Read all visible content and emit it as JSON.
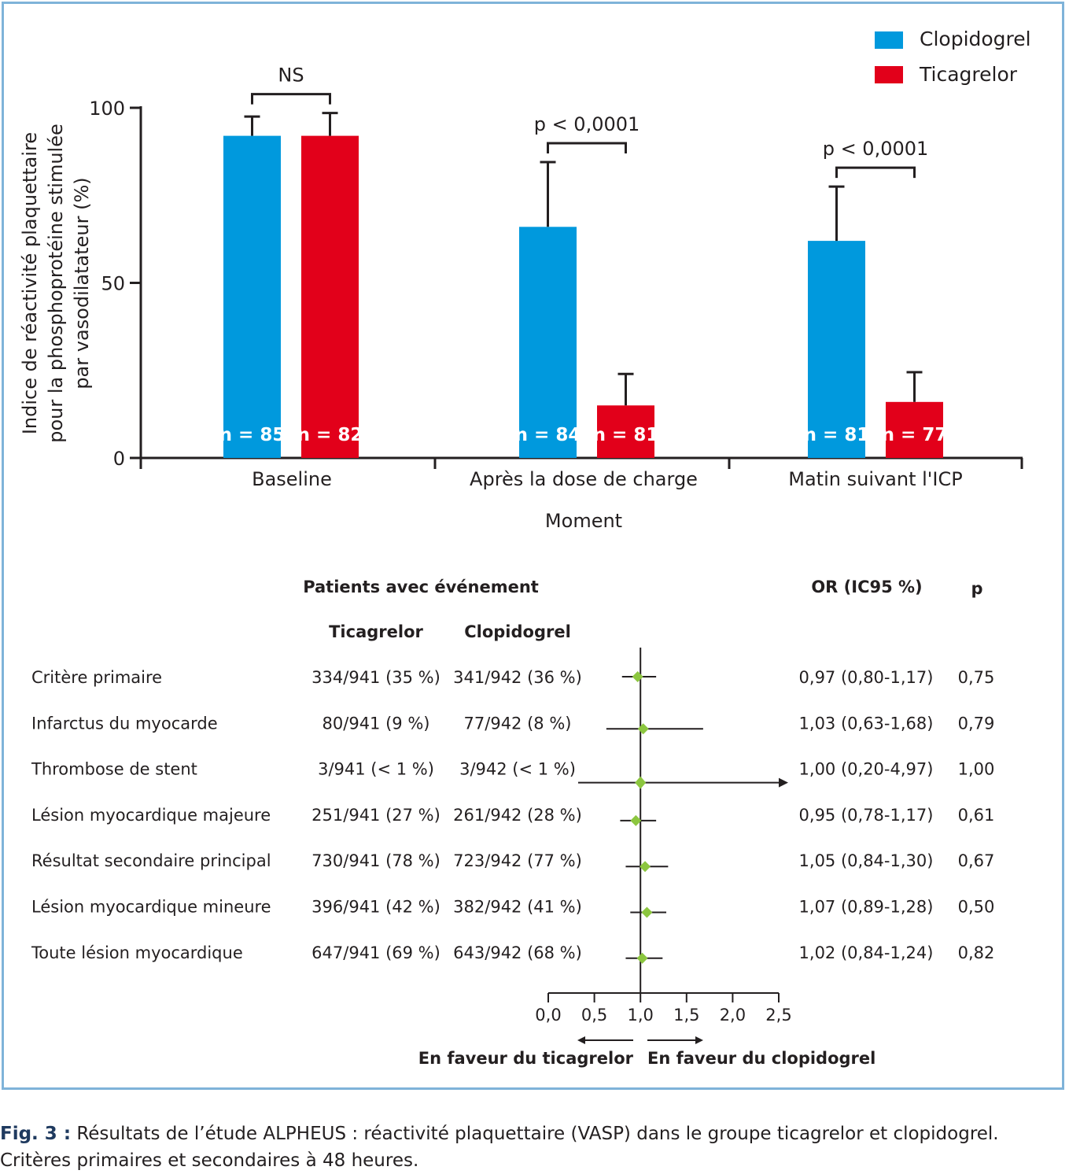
{
  "colors": {
    "clopidogrel": "#0099dd",
    "ticagrelor": "#e2001a",
    "diamond": "#8cc63f",
    "frame": "#7fb3d9"
  },
  "chart_data": [
    {
      "type": "bar",
      "ylabel": "Indice de réactivité plaquettaire pour la phosphoprotéine stimulée par vasodilatateur (%)",
      "ylabel_lines": [
        "Indice de réactivité plaquettaire",
        "pour la phosphoprotéine stimulée",
        "par vasodilatateur (%)"
      ],
      "xlabel": "Moment",
      "ylim": [
        0,
        100
      ],
      "yticks": [
        0,
        50,
        100
      ],
      "categories": [
        "Baseline",
        "Après la dose de charge",
        "Matin suivant l'ICP"
      ],
      "legend": [
        "Clopidogrel",
        "Ticagrelor"
      ],
      "legend_position": "top-right",
      "series": [
        {
          "name": "Clopidogrel",
          "values": [
            92,
            66,
            62
          ],
          "error": [
            5.5,
            18.5,
            15.5
          ],
          "n_labels": [
            "n = 85",
            "n = 84",
            "n = 81"
          ]
        },
        {
          "name": "Ticagrelor",
          "values": [
            92,
            15,
            16
          ],
          "error": [
            6.5,
            9,
            8.5
          ],
          "n_labels": [
            "n = 82",
            "n = 81",
            "n = 77"
          ]
        }
      ],
      "significance": [
        "NS",
        "p < 0,0001",
        "p < 0,0001"
      ]
    },
    {
      "type": "forest",
      "header_events": "Patients avec événement",
      "header_ticagrelor": "Ticagrelor",
      "header_clopidogrel": "Clopidogrel",
      "header_or": "OR (IC95 %)",
      "header_p": "p",
      "rows": [
        {
          "label": "Critère primaire",
          "ticagrelor": "334/941 (35 %)",
          "clopidogrel": "341/942 (36 %)",
          "or_text": "0,97 (0,80-1,17)",
          "p": "0,75",
          "or": 0.97,
          "lo": 0.8,
          "hi": 1.17,
          "arrow": false
        },
        {
          "label": "Infarctus du myocarde",
          "ticagrelor": "80/941 (9 %)",
          "clopidogrel": "77/942 (8 %)",
          "or_text": "1,03 (0,63-1,68)",
          "p": "0,79",
          "or": 1.03,
          "lo": 0.63,
          "hi": 1.68,
          "arrow": false
        },
        {
          "label": "Thrombose de stent",
          "ticagrelor": "3/941 (< 1 %)",
          "clopidogrel": "3/942 (< 1 %)",
          "or_text": "1,00 (0,20-4,97)",
          "p": "1,00",
          "or": 1.0,
          "lo": 0.2,
          "hi": 4.97,
          "arrow": true
        },
        {
          "label": "Lésion myocardique majeure",
          "ticagrelor": "251/941 (27 %)",
          "clopidogrel": "261/942 (28 %)",
          "or_text": "0,95 (0,78-1,17)",
          "p": "0,61",
          "or": 0.95,
          "lo": 0.78,
          "hi": 1.17,
          "arrow": false
        },
        {
          "label": "Résultat secondaire principal",
          "ticagrelor": "730/941 (78 %)",
          "clopidogrel": "723/942 (77 %)",
          "or_text": "1,05 (0,84-1,30)",
          "p": "0,67",
          "or": 1.05,
          "lo": 0.84,
          "hi": 1.3,
          "arrow": false
        },
        {
          "label": "Lésion myocardique mineure",
          "ticagrelor": "396/941 (42 %)",
          "clopidogrel": "382/942 (41 %)",
          "or_text": "1,07 (0,89-1,28)",
          "p": "0,50",
          "or": 1.07,
          "lo": 0.89,
          "hi": 1.28,
          "arrow": false
        },
        {
          "label": "Toute lésion myocardique",
          "ticagrelor": "647/941 (69 %)",
          "clopidogrel": "643/942 (68 %)",
          "or_text": "1,02 (0,84-1,24)",
          "p": "0,82",
          "or": 1.02,
          "lo": 0.84,
          "hi": 1.24,
          "arrow": false
        }
      ],
      "xlim": [
        0,
        2.5
      ],
      "xticks": [
        "0,0",
        "0,5",
        "1,0",
        "1,5",
        "2,0",
        "2,5"
      ],
      "favor_left": "En faveur du ticagrelor",
      "favor_right": "En faveur du clopidogrel"
    }
  ],
  "caption": {
    "label": "Fig. 3 :",
    "text": "Résultats de l’étude ALPHEUS : réactivité plaquettaire (VASP) dans le groupe ticagrelor et clopidogrel. Critères primaires et secondaires à 48 heures."
  }
}
